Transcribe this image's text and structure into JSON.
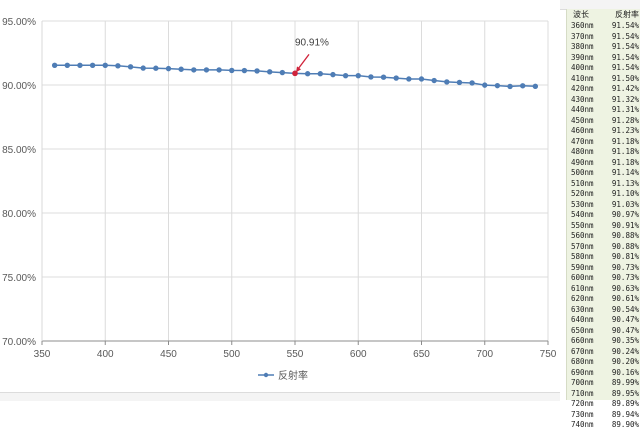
{
  "chart_data": {
    "type": "line",
    "title": "",
    "xlabel": "",
    "ylabel": "",
    "xlim": [
      350,
      750
    ],
    "ylim": [
      70,
      95
    ],
    "x_ticks": [
      "350",
      "400",
      "450",
      "500",
      "550",
      "600",
      "650",
      "700",
      "750"
    ],
    "y_ticks": [
      "95.00%",
      "90.00%",
      "85.00%",
      "80.00%",
      "75.00%",
      "70.00%"
    ],
    "grid": true,
    "legend_position": "bottom",
    "series": [
      {
        "name": "反射率",
        "color": "#4f7db5",
        "x": [
          360,
          370,
          380,
          390,
          400,
          410,
          420,
          430,
          440,
          450,
          460,
          470,
          480,
          490,
          500,
          510,
          520,
          530,
          540,
          550,
          560,
          570,
          580,
          590,
          600,
          610,
          620,
          630,
          640,
          650,
          660,
          670,
          680,
          690,
          700,
          710,
          720,
          730,
          740
        ],
        "y": [
          91.54,
          91.54,
          91.54,
          91.54,
          91.54,
          91.5,
          91.42,
          91.32,
          91.31,
          91.28,
          91.23,
          91.18,
          91.18,
          91.18,
          91.14,
          91.13,
          91.1,
          91.03,
          90.97,
          90.91,
          90.88,
          90.88,
          90.81,
          90.73,
          90.73,
          90.63,
          90.61,
          90.54,
          90.47,
          90.47,
          90.35,
          90.24,
          90.2,
          90.16,
          89.99,
          89.95,
          89.89,
          89.94,
          89.9
        ]
      }
    ],
    "annotation": {
      "x": 550,
      "y": 90.91,
      "text": "90.91%",
      "color": "#d0223a"
    }
  },
  "side_table": {
    "headers": [
      "波长",
      "反射率"
    ],
    "rows": [
      [
        "360nm",
        "91.54%"
      ],
      [
        "370nm",
        "91.54%"
      ],
      [
        "380nm",
        "91.54%"
      ],
      [
        "390nm",
        "91.54%"
      ],
      [
        "400nm",
        "91.54%"
      ],
      [
        "410nm",
        "91.50%"
      ],
      [
        "420nm",
        "91.42%"
      ],
      [
        "430nm",
        "91.32%"
      ],
      [
        "440nm",
        "91.31%"
      ],
      [
        "450nm",
        "91.28%"
      ],
      [
        "460nm",
        "91.23%"
      ],
      [
        "470nm",
        "91.18%"
      ],
      [
        "480nm",
        "91.18%"
      ],
      [
        "490nm",
        "91.18%"
      ],
      [
        "500nm",
        "91.14%"
      ],
      [
        "510nm",
        "91.13%"
      ],
      [
        "520nm",
        "91.10%"
      ],
      [
        "530nm",
        "91.03%"
      ],
      [
        "540nm",
        "90.97%"
      ],
      [
        "550nm",
        "90.91%"
      ],
      [
        "560nm",
        "90.88%"
      ],
      [
        "570nm",
        "90.88%"
      ],
      [
        "580nm",
        "90.81%"
      ],
      [
        "590nm",
        "90.73%"
      ],
      [
        "600nm",
        "90.73%"
      ],
      [
        "610nm",
        "90.63%"
      ],
      [
        "620nm",
        "90.61%"
      ],
      [
        "630nm",
        "90.54%"
      ],
      [
        "640nm",
        "90.47%"
      ],
      [
        "650nm",
        "90.47%"
      ],
      [
        "660nm",
        "90.35%"
      ],
      [
        "670nm",
        "90.24%"
      ],
      [
        "680nm",
        "90.20%"
      ],
      [
        "690nm",
        "90.16%"
      ],
      [
        "700nm",
        "89.99%"
      ],
      [
        "710nm",
        "89.95%"
      ],
      [
        "720nm",
        "89.89%"
      ],
      [
        "730nm",
        "89.94%"
      ],
      [
        "740nm",
        "89.90%"
      ]
    ]
  }
}
